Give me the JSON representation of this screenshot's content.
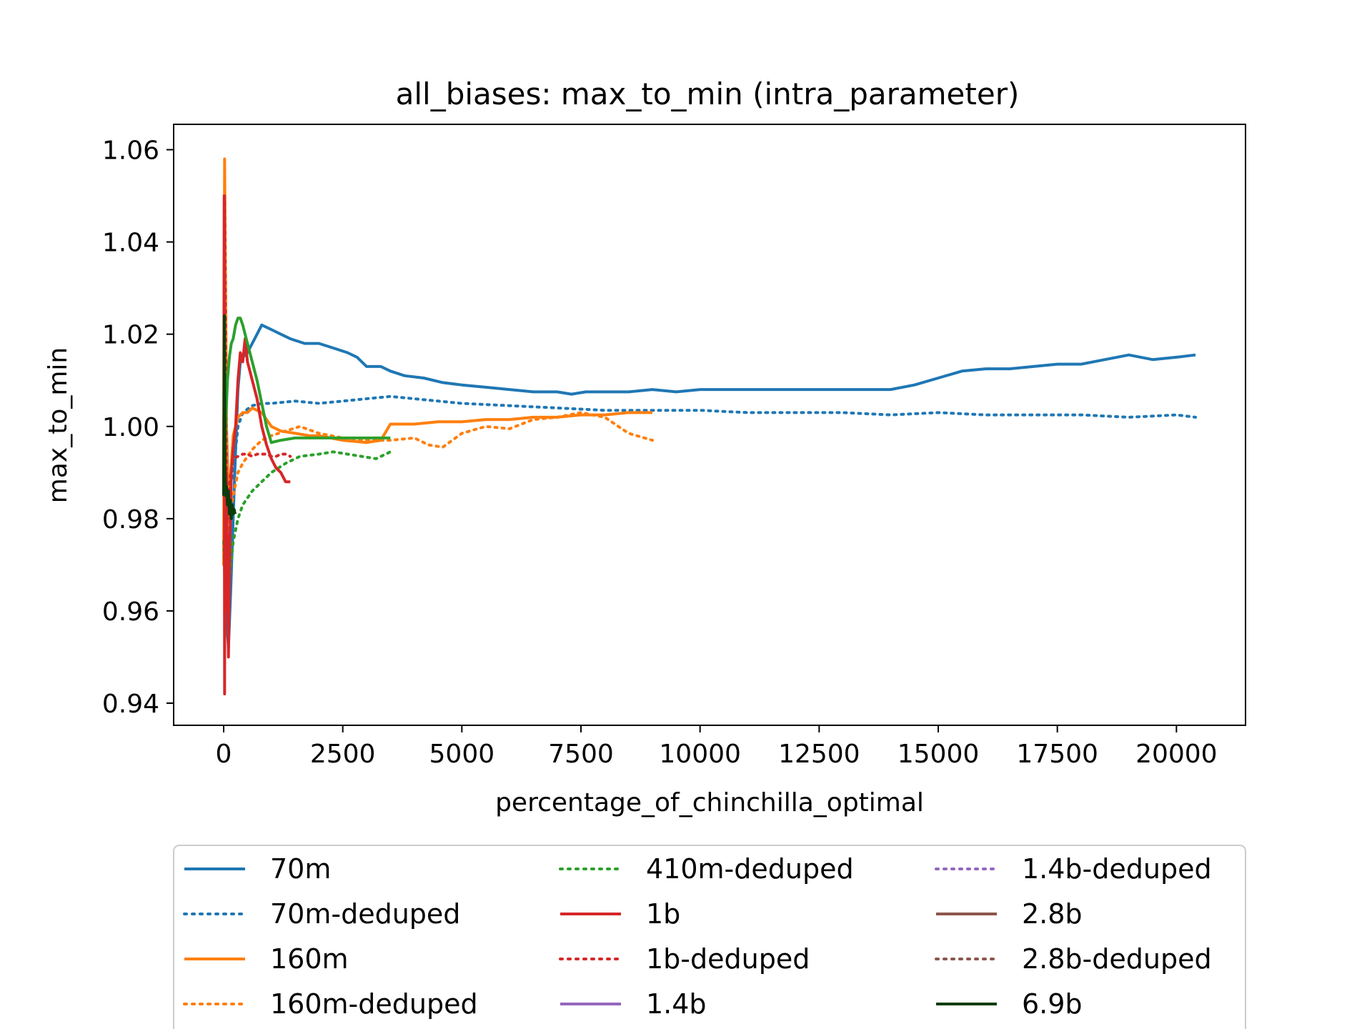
{
  "chart_data": {
    "type": "line",
    "title": "all_biases: max_to_min (intra_parameter)",
    "xlabel": "percentage_of_chinchilla_optimal",
    "ylabel": "max_to_min",
    "xlim": [
      -1050,
      21450
    ],
    "ylim": [
      0.9352,
      1.0655
    ],
    "xticks": [
      0,
      2500,
      5000,
      7500,
      10000,
      12500,
      15000,
      17500,
      20000
    ],
    "xtick_labels": [
      "0",
      "2500",
      "5000",
      "7500",
      "10000",
      "12500",
      "15000",
      "17500",
      "20000"
    ],
    "yticks": [
      0.94,
      0.96,
      0.98,
      1.0,
      1.02,
      1.04,
      1.06
    ],
    "ytick_labels": [
      "0.94",
      "0.96",
      "0.98",
      "1.00",
      "1.02",
      "1.04",
      "1.06"
    ],
    "grid": false,
    "legend_position": "below plot, 3 columns",
    "series": [
      {
        "name": "70m",
        "color": "#1f77b4",
        "style": "solid",
        "x": [
          0,
          50,
          100,
          150,
          200,
          250,
          300,
          350,
          400,
          500,
          600,
          700,
          800,
          1000,
          1200,
          1400,
          1700,
          2000,
          2300,
          2600,
          2800,
          3000,
          3300,
          3500,
          3800,
          4200,
          4600,
          5000,
          5500,
          6000,
          6500,
          7000,
          7300,
          7600,
          8000,
          8500,
          9000,
          9500,
          10000,
          10500,
          11000,
          11500,
          12000,
          12500,
          13000,
          13500,
          14000,
          14500,
          15000,
          15500,
          16000,
          16500,
          17000,
          17500,
          18000,
          18500,
          19000,
          19500,
          20000,
          20400
        ],
        "y": [
          0.975,
          0.96,
          0.952,
          0.965,
          0.98,
          0.995,
          1.008,
          1.014,
          1.015,
          1.016,
          1.018,
          1.02,
          1.022,
          1.021,
          1.02,
          1.019,
          1.018,
          1.018,
          1.017,
          1.016,
          1.015,
          1.013,
          1.013,
          1.012,
          1.011,
          1.0105,
          1.0095,
          1.009,
          1.0085,
          1.008,
          1.0075,
          1.0075,
          1.007,
          1.0075,
          1.0075,
          1.0075,
          1.008,
          1.0075,
          1.008,
          1.008,
          1.008,
          1.008,
          1.008,
          1.008,
          1.008,
          1.008,
          1.008,
          1.009,
          1.0105,
          1.012,
          1.0125,
          1.0125,
          1.013,
          1.0135,
          1.0135,
          1.0145,
          1.0155,
          1.0145,
          1.015,
          1.0155
        ]
      },
      {
        "name": "70m-deduped",
        "color": "#1f77b4",
        "style": "dotted",
        "x": [
          0,
          100,
          200,
          300,
          400,
          600,
          800,
          1000,
          1500,
          2000,
          2500,
          3000,
          3500,
          4000,
          5000,
          6000,
          7000,
          8000,
          9000,
          10000,
          11000,
          12000,
          13000,
          14000,
          15000,
          16000,
          17000,
          18000,
          19000,
          20000,
          20400
        ],
        "y": [
          0.975,
          0.985,
          0.99,
          1.0,
          1.003,
          1.0045,
          1.005,
          1.005,
          1.0055,
          1.005,
          1.0055,
          1.006,
          1.0065,
          1.006,
          1.005,
          1.0045,
          1.004,
          1.0035,
          1.0035,
          1.0035,
          1.003,
          1.003,
          1.003,
          1.0025,
          1.003,
          1.0025,
          1.0025,
          1.0025,
          1.002,
          1.0025,
          1.002
        ]
      },
      {
        "name": "160m",
        "color": "#ff7f0e",
        "style": "solid",
        "x": [
          0,
          20,
          40,
          60,
          100,
          150,
          200,
          300,
          400,
          500,
          600,
          700,
          800,
          1000,
          1200,
          1500,
          1800,
          2000,
          2500,
          3000,
          3300,
          3500,
          4000,
          4500,
          5000,
          5500,
          6000,
          6500,
          7000,
          7500,
          8000,
          8500,
          9000
        ],
        "y": 0,
        "y_values": [
          0.97,
          1.058,
          1.03,
          1.0,
          0.985,
          0.99,
          0.998,
          1.002,
          1.003,
          1.003,
          1.004,
          1.0035,
          1.003,
          1.0,
          0.999,
          0.9985,
          0.998,
          0.998,
          0.997,
          0.9965,
          0.997,
          1.0005,
          1.0005,
          1.001,
          1.001,
          1.0015,
          1.0015,
          1.002,
          1.002,
          1.0025,
          1.0025,
          1.003,
          1.003
        ]
      },
      {
        "name": "160m-deduped",
        "color": "#ff7f0e",
        "style": "dotted",
        "x": [
          0,
          50,
          100,
          200,
          300,
          400,
          600,
          800,
          1000,
          1300,
          1600,
          2000,
          2500,
          3000,
          3500,
          4000,
          4300,
          4600,
          5000,
          5500,
          6000,
          6500,
          7000,
          7500,
          8000,
          8500,
          9000
        ],
        "y_values": [
          0.97,
          0.975,
          0.98,
          0.985,
          0.99,
          0.992,
          0.995,
          0.997,
          0.998,
          0.999,
          1.0,
          0.9985,
          0.9975,
          0.997,
          0.997,
          0.9975,
          0.996,
          0.9955,
          0.9985,
          1.0,
          0.9995,
          1.0015,
          1.002,
          1.003,
          1.002,
          0.9985,
          0.997
        ]
      },
      {
        "name": "410m-deduped",
        "color": "#2ca02c",
        "style": "dotted",
        "x": [
          0,
          50,
          100,
          200,
          300,
          400,
          600,
          800,
          1000,
          1300,
          1600,
          2000,
          2300,
          2600,
          2900,
          3200,
          3500
        ],
        "y_values": [
          0.975,
          0.96,
          0.965,
          0.975,
          0.98,
          0.983,
          0.986,
          0.988,
          0.99,
          0.992,
          0.9935,
          0.994,
          0.9945,
          0.994,
          0.9935,
          0.993,
          0.9945
        ]
      },
      {
        "name": "1b",
        "color": "#d62728",
        "style": "solid",
        "x": [
          0,
          10,
          20,
          30,
          40,
          60,
          80,
          100,
          130,
          160,
          200,
          250,
          300,
          350,
          400,
          450,
          500,
          550,
          600,
          700,
          800,
          900,
          1000,
          1100,
          1200,
          1300,
          1400
        ],
        "y_values": [
          0.985,
          1.05,
          0.942,
          1.0,
          0.96,
          0.99,
          0.97,
          0.95,
          0.975,
          0.99,
          0.995,
          1.0,
          1.01,
          1.016,
          1.014,
          1.019,
          1.014,
          1.012,
          1.01,
          1.006,
          1.0,
          0.996,
          0.993,
          0.991,
          0.99,
          0.988,
          0.988
        ]
      },
      {
        "name": "1b-deduped",
        "color": "#d62728",
        "style": "dotted",
        "x": [
          0,
          20,
          40,
          60,
          80,
          100,
          150,
          200,
          300,
          400,
          500,
          600,
          700,
          800,
          900,
          1000,
          1100,
          1200,
          1300,
          1400
        ],
        "y_values": [
          0.985,
          1.05,
          1.02,
          0.99,
          0.98,
          0.985,
          0.99,
          0.993,
          0.9935,
          0.994,
          0.994,
          0.9935,
          0.994,
          0.994,
          0.994,
          0.9935,
          0.9935,
          0.994,
          0.994,
          0.9935
        ]
      },
      {
        "name": "1.4b",
        "color": "#9467bd",
        "style": "solid",
        "x": [],
        "y_values": []
      },
      {
        "name": "1.4b-deduped",
        "color": "#9467bd",
        "style": "dotted",
        "x": [],
        "y_values": []
      },
      {
        "name": "2.8b",
        "color": "#8c564b",
        "style": "solid",
        "x": [],
        "y_values": []
      },
      {
        "name": "2.8b-deduped",
        "color": "#8c564b",
        "style": "dotted",
        "x": [],
        "y_values": []
      },
      {
        "name": "410m",
        "color": "#2ca02c",
        "style": "solid",
        "legend": false,
        "x": [
          0,
          40,
          80,
          120,
          160,
          200,
          250,
          300,
          350,
          400,
          450,
          500,
          600,
          700,
          800,
          900,
          1000,
          1200,
          1500,
          2000,
          2500,
          3000,
          3500
        ],
        "y_values": [
          0.985,
          1.0,
          1.01,
          1.015,
          1.018,
          1.019,
          1.022,
          1.0235,
          1.0235,
          1.022,
          1.02,
          1.018,
          1.014,
          1.01,
          1.005,
          1.0,
          0.9965,
          0.997,
          0.9975,
          0.9975,
          0.9975,
          0.9975,
          0.9975
        ]
      },
      {
        "name": "6.9b",
        "color": "#0a3d0a",
        "style": "solid",
        "x": [
          0,
          15,
          30,
          45,
          60,
          80,
          100,
          120,
          140,
          160,
          180,
          200,
          220,
          240
        ],
        "y_values": [
          0.985,
          1.024,
          0.99,
          0.985,
          0.987,
          0.983,
          0.986,
          0.981,
          0.984,
          0.98,
          0.983,
          0.981,
          0.982,
          0.981
        ]
      }
    ],
    "legend": [
      "70m",
      "70m-deduped",
      "160m",
      "160m-deduped",
      "410m-deduped",
      "1b",
      "1b-deduped",
      "1.4b",
      "1.4b-deduped",
      "2.8b",
      "2.8b-deduped",
      "6.9b"
    ]
  }
}
